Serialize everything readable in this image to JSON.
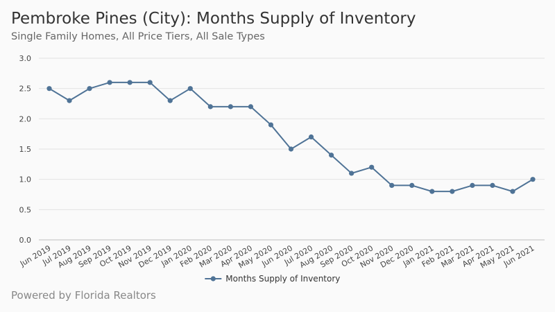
{
  "header": {
    "title": "Pembroke Pines (City): Months Supply of Inventory",
    "subtitle": "Single Family Homes, All Price Tiers, All Sale Types"
  },
  "footer": {
    "credit": "Powered by Florida Realtors"
  },
  "chart_data": {
    "type": "line",
    "title": "Pembroke Pines (City): Months Supply of Inventory",
    "subtitle": "Single Family Homes, All Price Tiers, All Sale Types",
    "xlabel": "",
    "ylabel": "",
    "categories": [
      "Jun 2019",
      "Jul 2019",
      "Aug 2019",
      "Sep 2019",
      "Oct 2019",
      "Nov 2019",
      "Dec 2019",
      "Jan 2020",
      "Feb 2020",
      "Mar 2020",
      "Apr 2020",
      "May 2020",
      "Jun 2020",
      "Jul 2020",
      "Aug 2020",
      "Sep 2020",
      "Oct 2020",
      "Nov 2020",
      "Dec 2020",
      "Jan 2021",
      "Feb 2021",
      "Mar 2021",
      "Apr 2021",
      "May 2021",
      "Jun 2021"
    ],
    "series": [
      {
        "name": "Months Supply of Inventory",
        "color": "#4f7396",
        "values": [
          2.5,
          2.3,
          2.5,
          2.6,
          2.6,
          2.6,
          2.3,
          2.5,
          2.2,
          2.2,
          2.2,
          1.9,
          1.5,
          1.7,
          1.4,
          1.1,
          1.2,
          0.9,
          0.9,
          0.8,
          0.8,
          0.9,
          0.9,
          0.8,
          1.0
        ]
      }
    ],
    "ylim": [
      0,
      3
    ],
    "yticks": [
      "0.0",
      "0.5",
      "1.0",
      "1.5",
      "2.0",
      "2.5",
      "3.0"
    ],
    "grid": true,
    "legend_position": "bottom-center"
  }
}
